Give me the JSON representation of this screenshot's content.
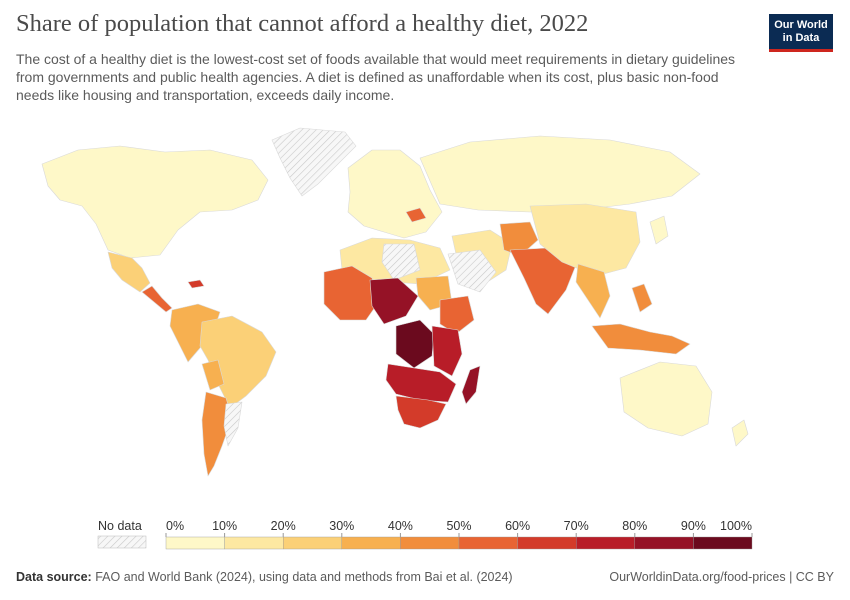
{
  "header": {
    "title": "Share of population that cannot afford a healthy diet, 2022",
    "subtitle": "The cost of a healthy diet is the lowest-cost set of foods available that would meet requirements in dietary guidelines from governments and public health agencies. A diet is defined as unaffordable when its cost, plus basic non-food needs like housing and transportation, exceeds daily income."
  },
  "logo": {
    "line1": "Our World",
    "line2": "in Data"
  },
  "legend": {
    "no_data_label": "No data",
    "ticks": [
      "0%",
      "10%",
      "20%",
      "30%",
      "40%",
      "50%",
      "60%",
      "70%",
      "80%",
      "90%",
      "100%"
    ],
    "colors": [
      "#fef8c8",
      "#fde8a2",
      "#fbd077",
      "#f7b050",
      "#f18d3c",
      "#e86433",
      "#d33b2a",
      "#b81d28",
      "#951226",
      "#6b0a1e"
    ]
  },
  "footer": {
    "source_label": "Data source:",
    "source_text": "FAO and World Bank (2024), using data and methods from Bai et al. (2024)",
    "url_license": "OurWorldinData.org/food-prices | CC BY"
  },
  "map_data": {
    "regions": [
      {
        "name": "North America",
        "band": 0
      },
      {
        "name": "Mexico",
        "band": 2
      },
      {
        "name": "Central America",
        "band": 5
      },
      {
        "name": "Colombia / Peru",
        "band": 3
      },
      {
        "name": "Brazil",
        "band": 2
      },
      {
        "name": "Southern Cone",
        "band": 4
      },
      {
        "name": "Europe",
        "band": 0
      },
      {
        "name": "Russia",
        "band": 0
      },
      {
        "name": "North Africa",
        "band": 1
      },
      {
        "name": "Sudan",
        "band": 3
      },
      {
        "name": "West Africa",
        "band": 5
      },
      {
        "name": "Central Africa",
        "band": 8
      },
      {
        "name": "DR Congo",
        "band": 9
      },
      {
        "name": "East Africa",
        "band": 7
      },
      {
        "name": "Southern Africa",
        "band": 6
      },
      {
        "name": "Madagascar",
        "band": 8
      },
      {
        "name": "Middle East",
        "band": 1
      },
      {
        "name": "Central Asia",
        "band": 1
      },
      {
        "name": "India",
        "band": 5
      },
      {
        "name": "China",
        "band": 1
      },
      {
        "name": "Southeast Asia",
        "band": 3
      },
      {
        "name": "Indonesia",
        "band": 4
      },
      {
        "name": "Australia",
        "band": 0
      }
    ]
  }
}
